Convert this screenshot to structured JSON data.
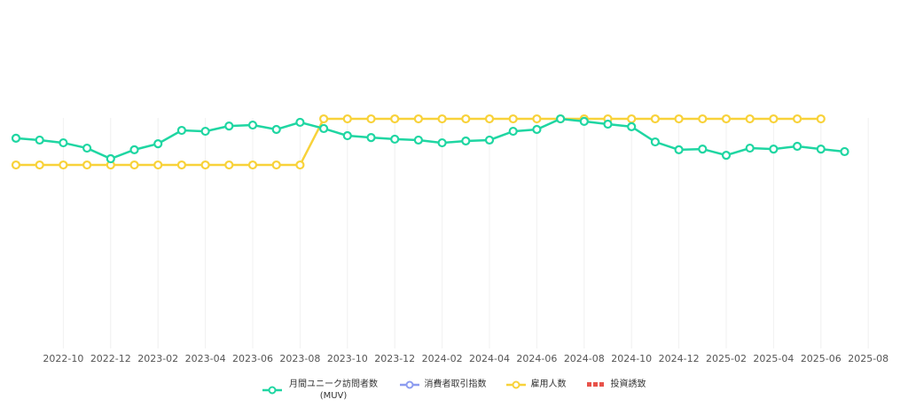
{
  "chart_data": {
    "type": "line",
    "categories": [
      null,
      null,
      "2022-10",
      null,
      "2022-12",
      null,
      "2023-02",
      null,
      "2023-04",
      null,
      "2023-06",
      null,
      "2023-08",
      null,
      "2023-10",
      null,
      "2023-12",
      null,
      "2024-02",
      null,
      "2024-04",
      null,
      "2024-06",
      null,
      "2024-08",
      null,
      "2024-10",
      null,
      "2024-12",
      null,
      "2025-02",
      null,
      "2025-04",
      null,
      "2025-06",
      null,
      "2025-08"
    ],
    "series": [
      {
        "name": "月間ユニーク訪問者数 (MUV)",
        "color": "#1fd6a2",
        "values": [
          91.2,
          90.4,
          89.2,
          86.9,
          82.3,
          86.2,
          88.8,
          94.6,
          94.2,
          96.5,
          96.9,
          95.0,
          98.1,
          95.4,
          92.3,
          91.5,
          90.8,
          90.4,
          89.2,
          90.0,
          90.4,
          94.2,
          95.0,
          99.6,
          98.5,
          97.3,
          96.2,
          89.6,
          86.2,
          86.5,
          83.8,
          86.9,
          86.5,
          87.7,
          86.5,
          85.4,
          null
        ]
      },
      {
        "name": "消費者取引指数",
        "color": "#8c9cf0",
        "values": [
          null,
          null,
          null,
          null,
          null,
          null,
          null,
          null,
          null,
          null,
          null,
          null,
          null,
          null,
          null,
          null,
          null,
          null,
          null,
          null,
          null,
          null,
          null,
          null,
          null,
          null,
          null,
          null,
          null,
          null,
          null,
          null,
          null,
          null,
          null,
          null,
          null
        ]
      },
      {
        "name": "雇用人数",
        "color": "#f8d23a",
        "values": [
          79.6,
          79.6,
          79.6,
          79.6,
          79.6,
          79.6,
          79.6,
          79.6,
          79.6,
          79.6,
          79.6,
          79.6,
          79.6,
          99.6,
          99.6,
          99.6,
          99.6,
          99.6,
          99.6,
          99.6,
          99.6,
          99.6,
          99.6,
          99.6,
          99.6,
          99.6,
          99.6,
          99.6,
          99.6,
          99.6,
          99.6,
          99.6,
          99.6,
          99.6,
          99.6,
          null,
          null
        ]
      },
      {
        "name": "投資誘致",
        "color": "#e8524a",
        "line_style": "dotted",
        "values": [
          null,
          null,
          null,
          null,
          null,
          null,
          null,
          null,
          null,
          null,
          null,
          null,
          null,
          null,
          null,
          null,
          null,
          null,
          null,
          null,
          null,
          null,
          null,
          null,
          null,
          null,
          null,
          null,
          null,
          null,
          null,
          null,
          null,
          null,
          null,
          null,
          null
        ]
      }
    ],
    "ylim": [
      0,
      100
    ],
    "grid": true
  }
}
